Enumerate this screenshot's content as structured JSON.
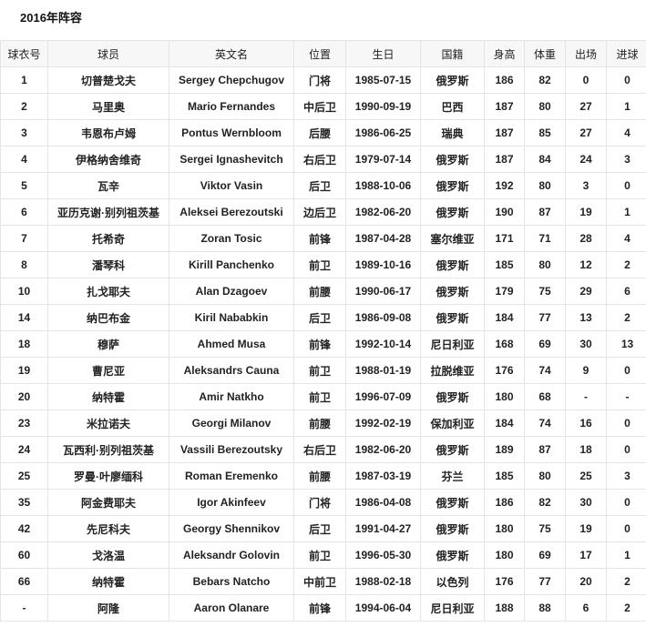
{
  "title": "2016年阵容",
  "columns": [
    "球衣号",
    "球员",
    "英文名",
    "位置",
    "生日",
    "国籍",
    "身高",
    "体重",
    "出场",
    "进球"
  ],
  "rows": [
    [
      "1",
      "切普楚戈夫",
      "Sergey Chepchugov",
      "门将",
      "1985-07-15",
      "俄罗斯",
      "186",
      "82",
      "0",
      "0"
    ],
    [
      "2",
      "马里奥",
      "Mario Fernandes",
      "中后卫",
      "1990-09-19",
      "巴西",
      "187",
      "80",
      "27",
      "1"
    ],
    [
      "3",
      "韦恩布卢姆",
      "Pontus Wernbloom",
      "后腰",
      "1986-06-25",
      "瑞典",
      "187",
      "85",
      "27",
      "4"
    ],
    [
      "4",
      "伊格纳舍维奇",
      "Sergei Ignashevitch",
      "右后卫",
      "1979-07-14",
      "俄罗斯",
      "187",
      "84",
      "24",
      "3"
    ],
    [
      "5",
      "瓦辛",
      "Viktor Vasin",
      "后卫",
      "1988-10-06",
      "俄罗斯",
      "192",
      "80",
      "3",
      "0"
    ],
    [
      "6",
      "亚历克谢·别列祖茨基",
      "Aleksei Berezoutski",
      "边后卫",
      "1982-06-20",
      "俄罗斯",
      "190",
      "87",
      "19",
      "1"
    ],
    [
      "7",
      "托希奇",
      "Zoran Tosic",
      "前锋",
      "1987-04-28",
      "塞尔维亚",
      "171",
      "71",
      "28",
      "4"
    ],
    [
      "8",
      "潘琴科",
      "Kirill Panchenko",
      "前卫",
      "1989-10-16",
      "俄罗斯",
      "185",
      "80",
      "12",
      "2"
    ],
    [
      "10",
      "扎戈耶夫",
      "Alan Dzagoev",
      "前腰",
      "1990-06-17",
      "俄罗斯",
      "179",
      "75",
      "29",
      "6"
    ],
    [
      "14",
      "纳巴布金",
      "Kiril Nababkin",
      "后卫",
      "1986-09-08",
      "俄罗斯",
      "184",
      "77",
      "13",
      "2"
    ],
    [
      "18",
      "穆萨",
      "Ahmed Musa",
      "前锋",
      "1992-10-14",
      "尼日利亚",
      "168",
      "69",
      "30",
      "13"
    ],
    [
      "19",
      "曹尼亚",
      "Aleksandrs Cauna",
      "前卫",
      "1988-01-19",
      "拉脱维亚",
      "176",
      "74",
      "9",
      "0"
    ],
    [
      "20",
      "纳特霍",
      "Amir Natkho",
      "前卫",
      "1996-07-09",
      "俄罗斯",
      "180",
      "68",
      "-",
      "-"
    ],
    [
      "23",
      "米拉诺夫",
      "Georgi Milanov",
      "前腰",
      "1992-02-19",
      "保加利亚",
      "184",
      "74",
      "16",
      "0"
    ],
    [
      "24",
      "瓦西利·别列祖茨基",
      "Vassili Berezoutsky",
      "右后卫",
      "1982-06-20",
      "俄罗斯",
      "189",
      "87",
      "18",
      "0"
    ],
    [
      "25",
      "罗曼·叶廖缅科",
      "Roman Eremenko",
      "前腰",
      "1987-03-19",
      "芬兰",
      "185",
      "80",
      "25",
      "3"
    ],
    [
      "35",
      "阿金费耶夫",
      "Igor Akinfeev",
      "门将",
      "1986-04-08",
      "俄罗斯",
      "186",
      "82",
      "30",
      "0"
    ],
    [
      "42",
      "先尼科夫",
      "Georgy Shennikov",
      "后卫",
      "1991-04-27",
      "俄罗斯",
      "180",
      "75",
      "19",
      "0"
    ],
    [
      "60",
      "戈洛温",
      "Aleksandr Golovin",
      "前卫",
      "1996-05-30",
      "俄罗斯",
      "180",
      "69",
      "17",
      "1"
    ],
    [
      "66",
      "纳特霍",
      "Bebars Natcho",
      "中前卫",
      "1988-02-18",
      "以色列",
      "176",
      "77",
      "20",
      "2"
    ],
    [
      "-",
      "阿隆",
      "Aaron Olanare",
      "前锋",
      "1994-06-04",
      "尼日利亚",
      "188",
      "88",
      "6",
      "2"
    ]
  ]
}
